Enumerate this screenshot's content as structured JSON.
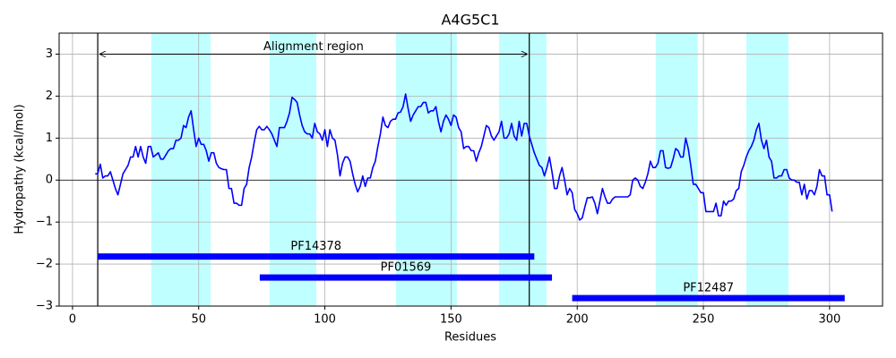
{
  "chart_data": {
    "type": "line",
    "title": "A4G5C1",
    "x_label": "Residues",
    "y_label": "Hydropathy (kcal/mol)",
    "xlim": [
      -5.3,
      321
    ],
    "ylim": [
      -3,
      3.5
    ],
    "xticks": [
      0,
      50,
      100,
      150,
      200,
      250,
      300
    ],
    "yticks": [
      {
        "value": -3,
        "label": "−3"
      },
      {
        "value": -2,
        "label": "−2"
      },
      {
        "value": -1,
        "label": "−1"
      },
      0,
      1,
      2,
      3
    ],
    "grid": true,
    "zero_line": 0,
    "shade_color": "#c0ffff",
    "shaded_regions": [
      {
        "start": 31.2,
        "end": 54.7
      },
      {
        "start": 78.1,
        "end": 96.6
      },
      {
        "start": 128.2,
        "end": 152.3
      },
      {
        "start": 169,
        "end": 187.8
      },
      {
        "start": 231.1,
        "end": 247.8
      },
      {
        "start": 267,
        "end": 283.7
      }
    ],
    "boundary_lines": [
      10,
      181
    ],
    "alignment": {
      "text": "Alignment region",
      "start": 10,
      "end": 181,
      "y": 3
    },
    "domain_color": "#0000ff",
    "domains": [
      {
        "name": "PF14378",
        "start": 10,
        "end": 183,
        "y": -1.82
      },
      {
        "name": "PF01569",
        "start": 74.2,
        "end": 190,
        "y": -2.32
      },
      {
        "name": "PF12487",
        "start": 198,
        "end": 306,
        "y": -2.81
      }
    ],
    "x": [
      9,
      10,
      11,
      12,
      13,
      14,
      15,
      16,
      17,
      18,
      19,
      20,
      21,
      22,
      23,
      24,
      25,
      26,
      27,
      28,
      29,
      30,
      31,
      32,
      33,
      34,
      35,
      36,
      37,
      38,
      39,
      40,
      41,
      42,
      43,
      44,
      45,
      46,
      47,
      48,
      49,
      50,
      51,
      52,
      53,
      54,
      55,
      56,
      57,
      58,
      59,
      60,
      61,
      62,
      63,
      64,
      65,
      66,
      67,
      68,
      69,
      70,
      71,
      72,
      73,
      74,
      75,
      76,
      77,
      78,
      79,
      80,
      81,
      82,
      83,
      84,
      85,
      86,
      87,
      88,
      89,
      90,
      91,
      92,
      93,
      94,
      95,
      96,
      97,
      98,
      99,
      100,
      101,
      102,
      103,
      104,
      105,
      106,
      107,
      108,
      109,
      110,
      111,
      112,
      113,
      114,
      115,
      116,
      117,
      118,
      119,
      120,
      121,
      122,
      123,
      124,
      125,
      126,
      127,
      128,
      129,
      130,
      131,
      132,
      133,
      134,
      135,
      136,
      137,
      138,
      139,
      140,
      141,
      142,
      143,
      144,
      145,
      146,
      147,
      148,
      149,
      150,
      151,
      152,
      153,
      154,
      155,
      156,
      157,
      158,
      159,
      160,
      161,
      162,
      163,
      164,
      165,
      166,
      167,
      168,
      169,
      170,
      171,
      172,
      173,
      174,
      175,
      176,
      177,
      178,
      179,
      180,
      181,
      182,
      183,
      184,
      185,
      186,
      187,
      188,
      189,
      190,
      191,
      192,
      193,
      194,
      195,
      196,
      197,
      198,
      199,
      200,
      201,
      202,
      203,
      204,
      205,
      206,
      207,
      208,
      209,
      210,
      211,
      212,
      213,
      214,
      215,
      216,
      217,
      218,
      219,
      220,
      221,
      222,
      223,
      224,
      225,
      226,
      227,
      228,
      229,
      230,
      231,
      232,
      233,
      234,
      235,
      236,
      237,
      238,
      239,
      240,
      241,
      242,
      243,
      244,
      245,
      246,
      247,
      248,
      249,
      250,
      251,
      252,
      253,
      254,
      255,
      256,
      257,
      258,
      259,
      260,
      261,
      262,
      263,
      264,
      265,
      266,
      267,
      268,
      269,
      270,
      271,
      272,
      273,
      274,
      275,
      276,
      277,
      278,
      279,
      280,
      281,
      282,
      283,
      284,
      285,
      286,
      287,
      288,
      289,
      290,
      291,
      292,
      293,
      294,
      295,
      296,
      297,
      298,
      299,
      300,
      301
    ],
    "series": [
      {
        "color": "#0000ff",
        "values": [
          0.15,
          0.15,
          0.38,
          0.05,
          0.1,
          0.1,
          0.2,
          0.0,
          -0.2,
          -0.35,
          -0.1,
          0.15,
          0.25,
          0.35,
          0.55,
          0.55,
          0.8,
          0.55,
          0.8,
          0.55,
          0.4,
          0.8,
          0.8,
          0.55,
          0.6,
          0.65,
          0.5,
          0.5,
          0.6,
          0.7,
          0.75,
          0.75,
          0.95,
          0.95,
          1.0,
          1.3,
          1.25,
          1.5,
          1.65,
          1.2,
          0.8,
          1.0,
          0.85,
          0.85,
          0.7,
          0.45,
          0.65,
          0.65,
          0.4,
          0.3,
          0.27,
          0.25,
          0.25,
          -0.2,
          -0.2,
          -0.55,
          -0.55,
          -0.6,
          -0.6,
          -0.2,
          -0.1,
          0.3,
          0.55,
          0.9,
          1.2,
          1.28,
          1.2,
          1.2,
          1.28,
          1.2,
          1.1,
          0.95,
          0.8,
          1.25,
          1.25,
          1.25,
          1.4,
          1.6,
          1.97,
          1.92,
          1.85,
          1.55,
          1.3,
          1.15,
          1.1,
          1.1,
          1.0,
          1.35,
          1.15,
          1.1,
          0.95,
          1.2,
          0.8,
          1.2,
          1.0,
          0.95,
          0.6,
          0.1,
          0.4,
          0.55,
          0.55,
          0.45,
          0.15,
          -0.1,
          -0.28,
          -0.15,
          0.1,
          -0.15,
          0.05,
          0.05,
          0.3,
          0.45,
          0.8,
          1.1,
          1.5,
          1.3,
          1.25,
          1.4,
          1.45,
          1.45,
          1.6,
          1.62,
          1.75,
          2.05,
          1.7,
          1.4,
          1.55,
          1.65,
          1.75,
          1.75,
          1.85,
          1.85,
          1.6,
          1.65,
          1.65,
          1.75,
          1.4,
          1.15,
          1.4,
          1.55,
          1.45,
          1.3,
          1.55,
          1.5,
          1.25,
          1.15,
          0.75,
          0.8,
          0.8,
          0.7,
          0.7,
          0.45,
          0.65,
          0.8,
          1.05,
          1.3,
          1.25,
          1.05,
          0.95,
          1.05,
          1.15,
          1.4,
          1.0,
          1.0,
          1.1,
          1.35,
          1.05,
          0.95,
          1.4,
          1.05,
          1.35,
          1.35,
          1.05,
          0.85,
          0.65,
          0.5,
          0.35,
          0.3,
          0.1,
          0.3,
          0.55,
          0.2,
          -0.2,
          -0.2,
          0.1,
          0.3,
          0.0,
          -0.35,
          -0.2,
          -0.3,
          -0.7,
          -0.8,
          -0.95,
          -0.9,
          -0.65,
          -0.42,
          -0.42,
          -0.4,
          -0.55,
          -0.8,
          -0.5,
          -0.2,
          -0.4,
          -0.55,
          -0.55,
          -0.45,
          -0.4,
          -0.4,
          -0.4,
          -0.4,
          -0.4,
          -0.4,
          -0.35,
          0.0,
          0.05,
          0.0,
          -0.15,
          -0.2,
          -0.05,
          0.15,
          0.45,
          0.3,
          0.3,
          0.4,
          0.7,
          0.7,
          0.3,
          0.28,
          0.3,
          0.5,
          0.75,
          0.7,
          0.55,
          0.55,
          1.0,
          0.75,
          0.35,
          -0.1,
          -0.1,
          -0.2,
          -0.3,
          -0.3,
          -0.75,
          -0.75,
          -0.75,
          -0.75,
          -0.55,
          -0.85,
          -0.85,
          -0.5,
          -0.6,
          -0.5,
          -0.5,
          -0.45,
          -0.25,
          -0.2,
          0.2,
          0.35,
          0.55,
          0.7,
          0.8,
          0.95,
          1.2,
          1.35,
          0.95,
          0.75,
          0.95,
          0.55,
          0.45,
          0.05,
          0.05,
          0.1,
          0.1,
          0.25,
          0.25,
          0.05,
          0.0,
          0.0,
          -0.05,
          -0.05,
          -0.35,
          -0.1,
          -0.45,
          -0.25,
          -0.25,
          -0.35,
          -0.15,
          0.25,
          0.1,
          0.1,
          -0.35,
          -0.35,
          -0.75
        ]
      }
    ]
  }
}
